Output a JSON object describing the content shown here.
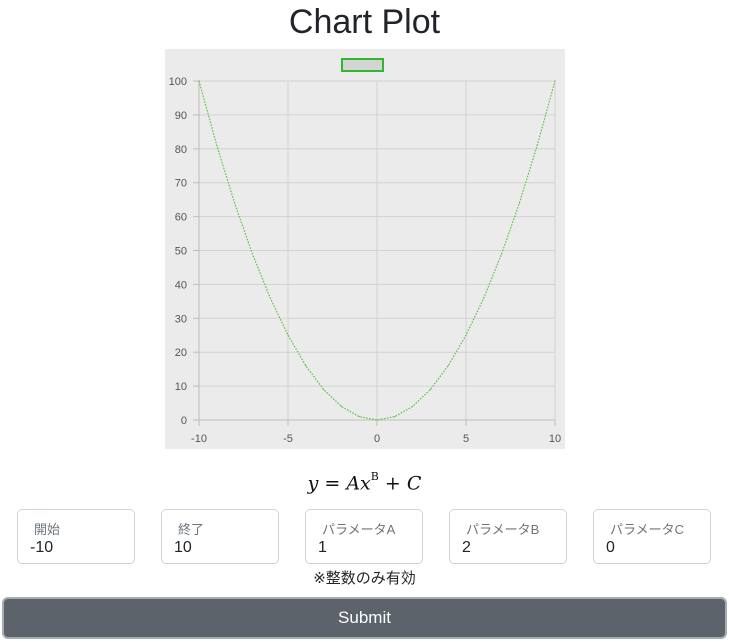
{
  "page": {
    "title": "Chart Plot"
  },
  "formula": {
    "lhs": "y",
    "eq": " = ",
    "coef": "A",
    "var": "x",
    "exp": "B",
    "plus": " + ",
    "const": "C"
  },
  "form": {
    "fields": [
      {
        "label": "開始",
        "value": "-10"
      },
      {
        "label": "終了",
        "value": "10"
      },
      {
        "label": "パラメータA",
        "value": "1"
      },
      {
        "label": "パラメータB",
        "value": "2"
      },
      {
        "label": "パラメータC",
        "value": "0"
      }
    ],
    "note": "※整数のみ有効",
    "submit_label": "Submit"
  },
  "colors": {
    "line": "#5cc447",
    "legend_border": "#2eb82e",
    "plot_bg": "#ebebeb",
    "button_bg": "#5c636a"
  },
  "chart_data": {
    "type": "line",
    "title": "",
    "xlabel": "",
    "ylabel": "",
    "xlim": [
      -10,
      10
    ],
    "ylim": [
      0,
      100
    ],
    "x_ticks": [
      -10,
      -5,
      0,
      5,
      10
    ],
    "y_ticks": [
      0,
      10,
      20,
      30,
      40,
      50,
      60,
      70,
      80,
      90,
      100
    ],
    "grid": true,
    "legend": "top-center",
    "series": [
      {
        "name": "",
        "x": [
          -10,
          -9,
          -8,
          -7,
          -6,
          -5,
          -4,
          -3,
          -2,
          -1,
          0,
          1,
          2,
          3,
          4,
          5,
          6,
          7,
          8,
          9,
          10
        ],
        "values": [
          100,
          81,
          64,
          49,
          36,
          25,
          16,
          9,
          4,
          1,
          0,
          1,
          4,
          9,
          16,
          25,
          36,
          49,
          64,
          81,
          100
        ]
      }
    ]
  }
}
